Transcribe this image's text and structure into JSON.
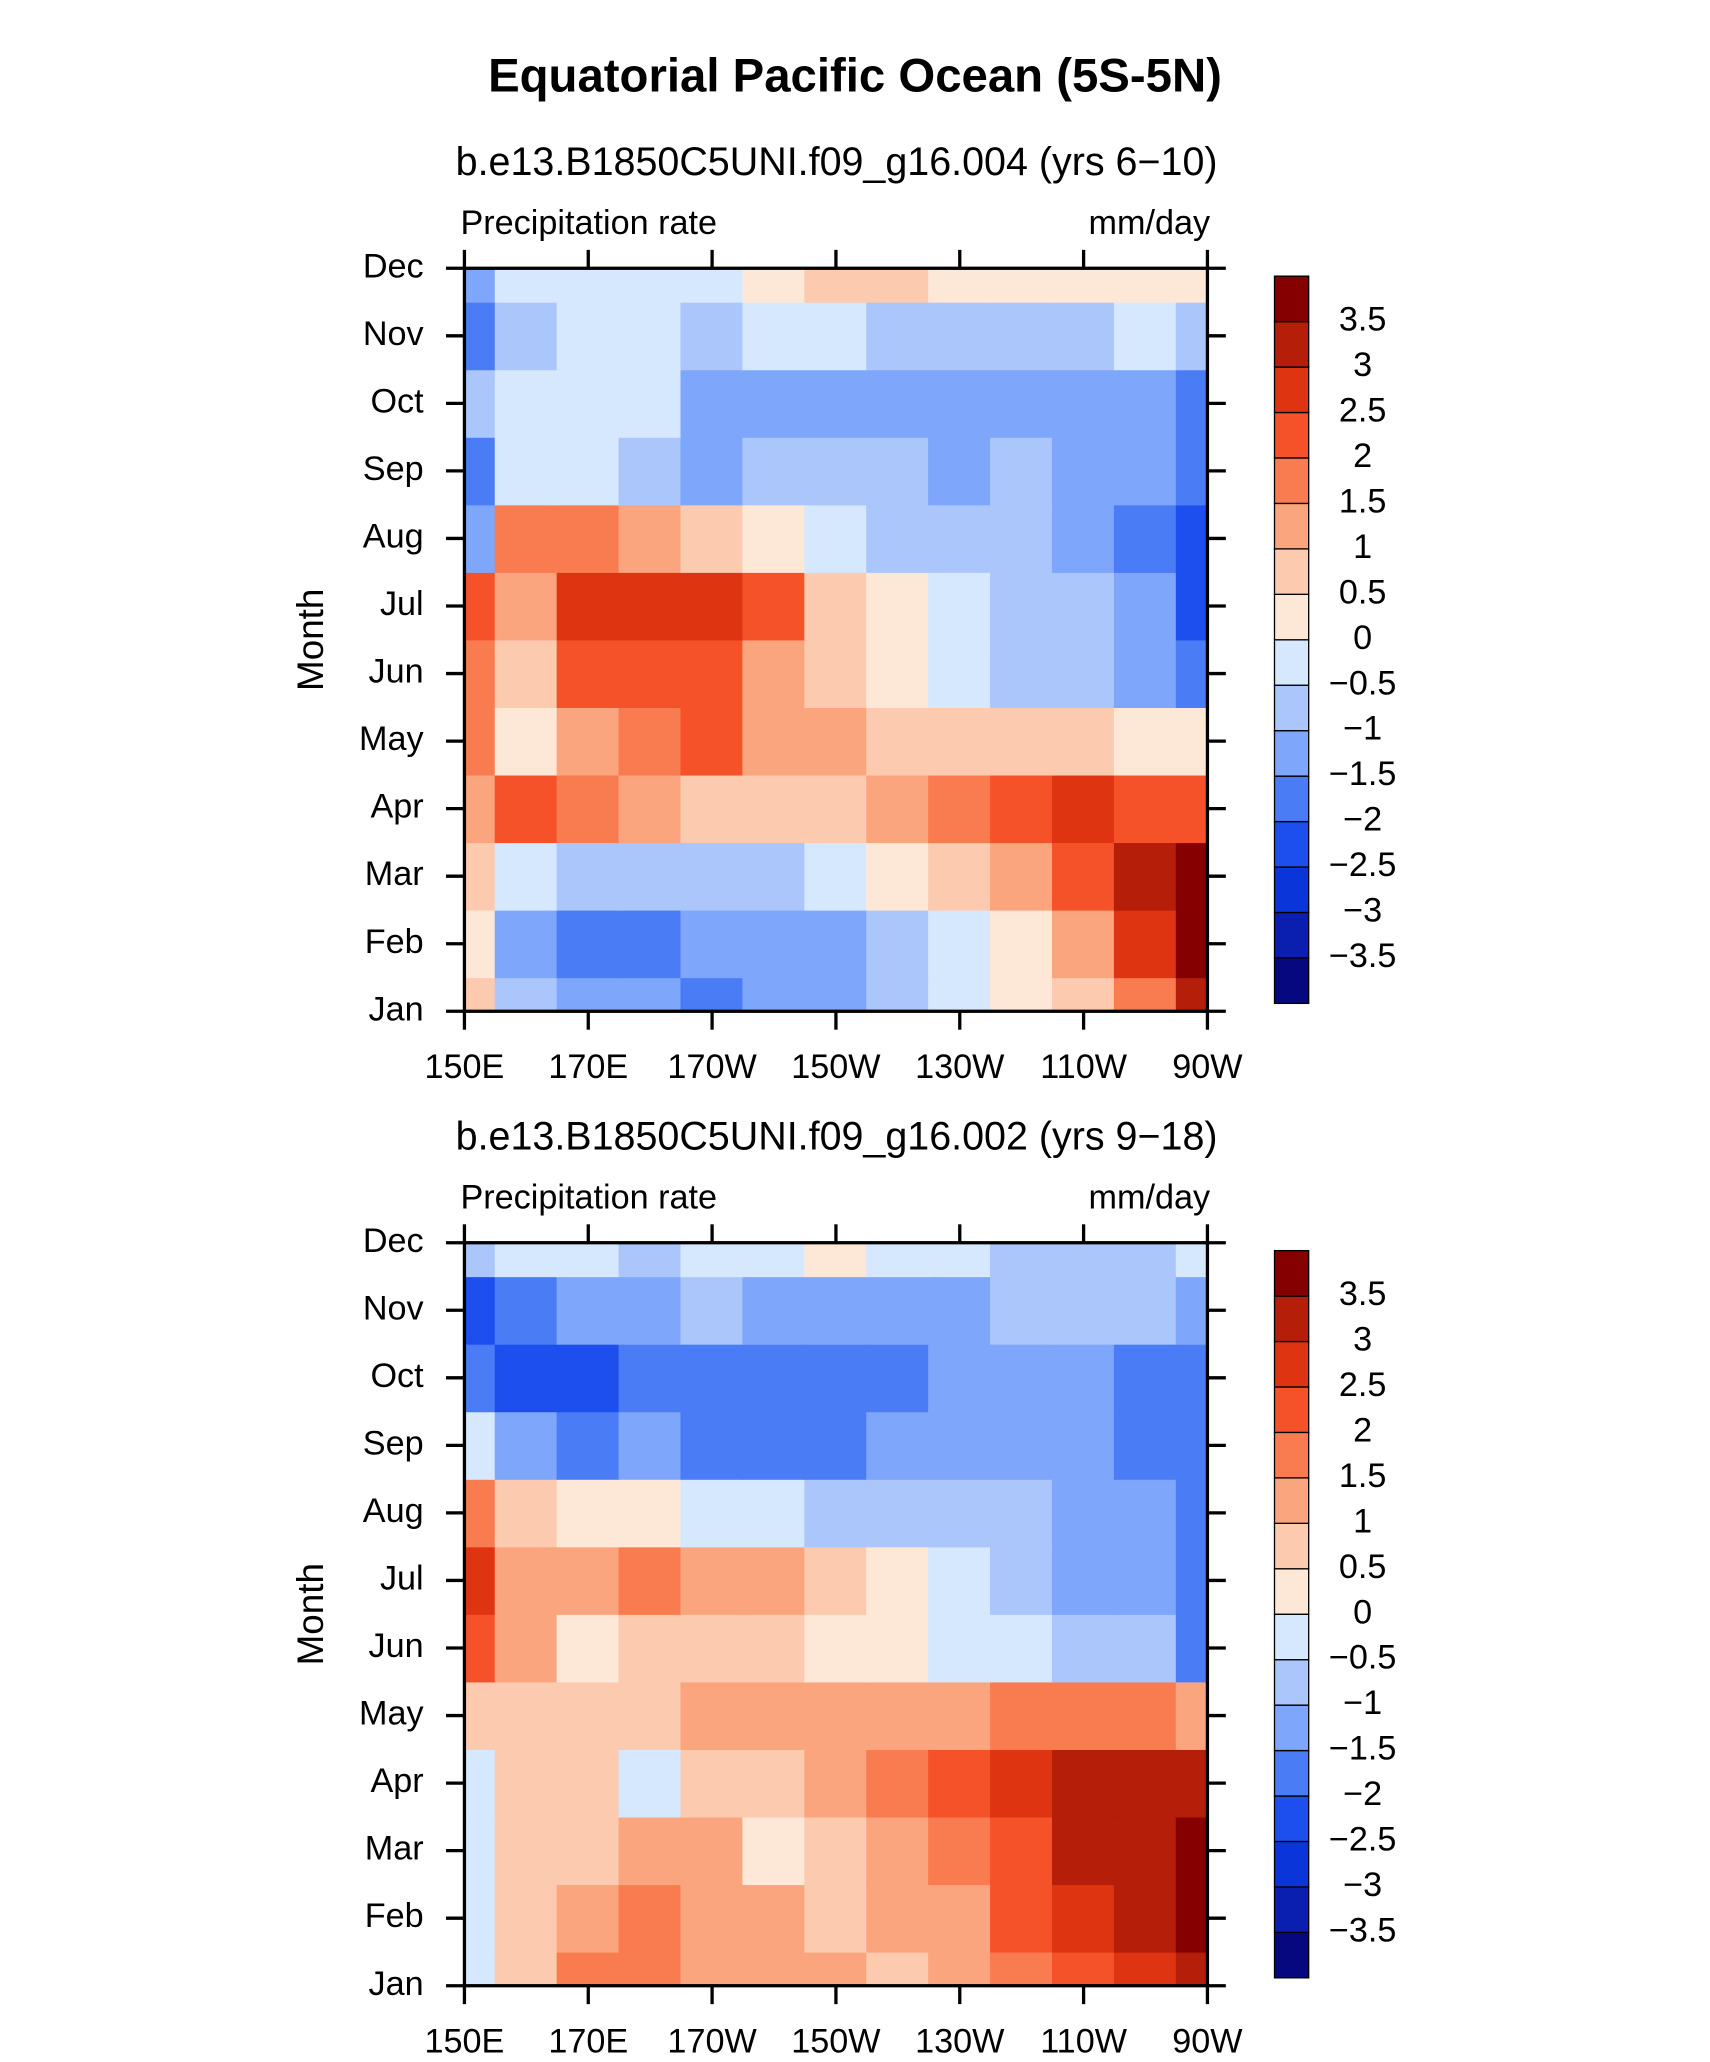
{
  "title": "Equatorial Pacific Ocean (5S-5N)",
  "chart_data": [
    {
      "type": "heatmap",
      "title": "b.e13.B1850C5UNI.f09_g16.004 (yrs 6−10)",
      "subtitle": "Precipitation rate",
      "units": "mm/day",
      "y_label": "Month",
      "x": [
        150,
        160,
        170,
        180,
        190,
        200,
        210,
        220,
        230,
        240,
        250,
        260,
        270
      ],
      "xlim": [
        150,
        270
      ],
      "xticks": [
        {
          "value": 150,
          "label": "150E"
        },
        {
          "value": 170,
          "label": "170E"
        },
        {
          "value": 190,
          "label": "170W"
        },
        {
          "value": 210,
          "label": "150W"
        },
        {
          "value": 230,
          "label": "130W"
        },
        {
          "value": 250,
          "label": "110W"
        },
        {
          "value": 270,
          "label": "90W"
        }
      ],
      "categories": [
        "Jan",
        "Feb",
        "Mar",
        "Apr",
        "May",
        "Jun",
        "Jul",
        "Aug",
        "Sep",
        "Oct",
        "Nov",
        "Dec"
      ],
      "values": [
        [
          0.5,
          -1,
          -1.5,
          -1.5,
          -2,
          -1.5,
          -1.5,
          -1,
          -0.5,
          0,
          0.5,
          1.5,
          3
        ],
        [
          0,
          -1.5,
          -2,
          -2,
          -1.5,
          -1.5,
          -1.5,
          -1,
          -0.5,
          0,
          1,
          2.5,
          3.5
        ],
        [
          0.5,
          -0.5,
          -1,
          -1,
          -1,
          -1,
          -0.5,
          0,
          0.5,
          1,
          2,
          3,
          3.5
        ],
        [
          1,
          2,
          1.5,
          1,
          0.5,
          0.5,
          0.5,
          1,
          1.5,
          2,
          2.5,
          2,
          2
        ],
        [
          1.5,
          0,
          1,
          1.5,
          2,
          1,
          1,
          0.5,
          0.5,
          0.5,
          0.5,
          0,
          0
        ],
        [
          1.5,
          0.5,
          2,
          2,
          2,
          1,
          0.5,
          0,
          -0.5,
          -1,
          -1,
          -1.5,
          -2
        ],
        [
          2,
          1,
          2.5,
          2.5,
          2.5,
          2,
          0.5,
          0,
          -0.5,
          -1,
          -1,
          -1.5,
          -2.5
        ],
        [
          -1.5,
          1.5,
          1.5,
          1,
          0.5,
          0,
          -0.5,
          -1,
          -1,
          -1,
          -1.5,
          -2,
          -2.5
        ],
        [
          -2,
          -0.5,
          -0.5,
          -1,
          -1.5,
          -1,
          -1,
          -1,
          -1.5,
          -1,
          -1.5,
          -1.5,
          -2
        ],
        [
          -1,
          -0.5,
          -0.5,
          -0.5,
          -1.5,
          -1.5,
          -1.5,
          -1.5,
          -1.5,
          -1.5,
          -1.5,
          -1.5,
          -2
        ],
        [
          -2,
          -1,
          -0.5,
          -0.5,
          -1,
          -0.5,
          -0.5,
          -1,
          -1,
          -1,
          -1,
          -0.5,
          -1
        ],
        [
          -1.5,
          -0.5,
          -0.5,
          -0.5,
          -0.5,
          0,
          0.5,
          0.5,
          0,
          0,
          0,
          0,
          0
        ]
      ],
      "levels": [
        {
          "value": -3.5,
          "label": "−3.5"
        },
        {
          "value": -3,
          "label": "−3"
        },
        {
          "value": -2.5,
          "label": "−2.5"
        },
        {
          "value": -2,
          "label": "−2"
        },
        {
          "value": -1.5,
          "label": "−1.5"
        },
        {
          "value": -1,
          "label": "−1"
        },
        {
          "value": -0.5,
          "label": "−0.5"
        },
        0,
        0.5,
        1,
        1.5,
        2,
        2.5,
        3,
        3.5
      ],
      "colors": [
        "#05087e",
        "#0a1fb0",
        "#0a35d8",
        "#1d4fef",
        "#4a7cf5",
        "#7ea6fa",
        "#aac6fb",
        "#d6e8fd",
        "#fde8d8",
        "#fccaae",
        "#fba57f",
        "#f97c50",
        "#f5522a",
        "#de3412",
        "#b51e08",
        "#850000"
      ]
    },
    {
      "type": "heatmap",
      "title": "b.e13.B1850C5UNI.f09_g16.002 (yrs 9−18)",
      "subtitle": "Precipitation rate",
      "units": "mm/day",
      "y_label": "Month",
      "x": [
        150,
        160,
        170,
        180,
        190,
        200,
        210,
        220,
        230,
        240,
        250,
        260,
        270
      ],
      "xlim": [
        150,
        270
      ],
      "xticks": [
        {
          "value": 150,
          "label": "150E"
        },
        {
          "value": 170,
          "label": "170E"
        },
        {
          "value": 190,
          "label": "170W"
        },
        {
          "value": 210,
          "label": "150W"
        },
        {
          "value": 230,
          "label": "130W"
        },
        {
          "value": 250,
          "label": "110W"
        },
        {
          "value": 270,
          "label": "90W"
        }
      ],
      "categories": [
        "Jan",
        "Feb",
        "Mar",
        "Apr",
        "May",
        "Jun",
        "Jul",
        "Aug",
        "Sep",
        "Oct",
        "Nov",
        "Dec"
      ],
      "values": [
        [
          -0.5,
          0.5,
          1.5,
          1.5,
          1,
          1,
          1,
          0.5,
          1,
          1.5,
          2,
          2.5,
          3
        ],
        [
          -0.5,
          0.5,
          1,
          1.5,
          1,
          1,
          0.5,
          1,
          1,
          2,
          2.5,
          3,
          3.5
        ],
        [
          -0.5,
          0.5,
          0.5,
          1,
          1,
          0,
          0.5,
          1,
          1.5,
          2,
          3,
          3,
          3.5
        ],
        [
          -0.5,
          0.5,
          0.5,
          -0.5,
          0.5,
          0.5,
          1,
          1.5,
          2,
          2.5,
          3,
          3,
          3
        ],
        [
          0.5,
          0.5,
          0.5,
          0.5,
          1,
          1,
          1,
          1,
          1,
          1.5,
          1.5,
          1.5,
          1
        ],
        [
          2,
          1,
          0,
          0.5,
          0.5,
          0.5,
          0,
          0,
          -0.5,
          -0.5,
          -1,
          -1,
          -2
        ],
        [
          2.5,
          1,
          1,
          1.5,
          1,
          1,
          0.5,
          0,
          -0.5,
          -1,
          -1.5,
          -1.5,
          -2
        ],
        [
          1.5,
          0.5,
          0,
          0,
          -0.5,
          -0.5,
          -1,
          -1,
          -1,
          -1,
          -1.5,
          -1.5,
          -2
        ],
        [
          -0.5,
          -1.5,
          -2,
          -1.5,
          -2,
          -2,
          -2,
          -1.5,
          -1.5,
          -1.5,
          -1.5,
          -2,
          -2
        ],
        [
          -2,
          -2.5,
          -2.5,
          -2,
          -2,
          -2,
          -2,
          -2,
          -1.5,
          -1.5,
          -1.5,
          -2,
          -2
        ],
        [
          -2.5,
          -2,
          -1.5,
          -1.5,
          -1,
          -1.5,
          -1.5,
          -1.5,
          -1.5,
          -1,
          -1,
          -1,
          -1.5
        ],
        [
          -1,
          -0.5,
          -0.5,
          -1,
          -0.5,
          -0.5,
          0,
          -0.5,
          -0.5,
          -1,
          -1,
          -1,
          -0.5
        ]
      ],
      "levels": [
        {
          "value": -3.5,
          "label": "−3.5"
        },
        {
          "value": -3,
          "label": "−3"
        },
        {
          "value": -2.5,
          "label": "−2.5"
        },
        {
          "value": -2,
          "label": "−2"
        },
        {
          "value": -1.5,
          "label": "−1.5"
        },
        {
          "value": -1,
          "label": "−1"
        },
        {
          "value": -0.5,
          "label": "−0.5"
        },
        0,
        0.5,
        1,
        1.5,
        2,
        2.5,
        3,
        3.5
      ],
      "colors": [
        "#05087e",
        "#0a1fb0",
        "#0a35d8",
        "#1d4fef",
        "#4a7cf5",
        "#7ea6fa",
        "#aac6fb",
        "#d6e8fd",
        "#fde8d8",
        "#fccaae",
        "#fba57f",
        "#f97c50",
        "#f5522a",
        "#de3412",
        "#b51e08",
        "#850000"
      ]
    }
  ]
}
